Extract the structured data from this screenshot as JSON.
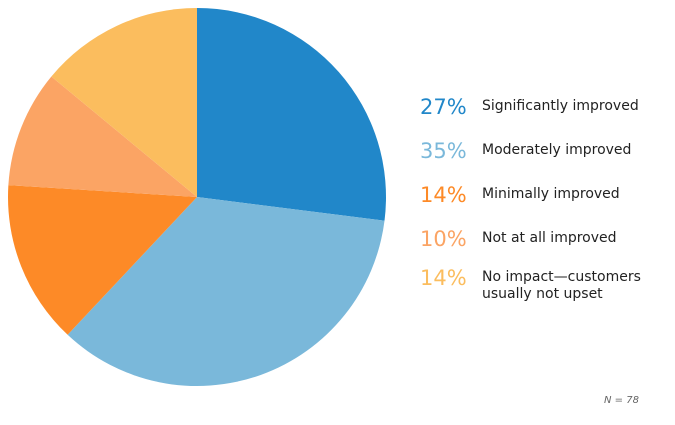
{
  "chart_data": {
    "type": "pie",
    "categories": [
      "Significantly improved",
      "Moderately improved",
      "Minimally improved",
      "Not at all improved",
      "No impact—customers usually not upset"
    ],
    "values": [
      27,
      35,
      14,
      10,
      14
    ],
    "value_labels": [
      "27%",
      "35%",
      "14%",
      "10%",
      "14%"
    ],
    "colors": [
      "#2187c9",
      "#7ab8da",
      "#fd8a27",
      "#fba464",
      "#fbbd5e"
    ],
    "note": "N = 78"
  }
}
